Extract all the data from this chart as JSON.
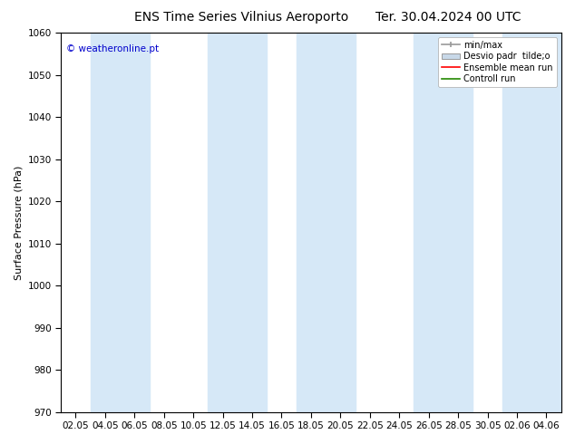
{
  "title_left": "ENS Time Series Vilnius Aeroporto",
  "title_right": "Ter. 30.04.2024 00 UTC",
  "ylabel": "Surface Pressure (hPa)",
  "ylim": [
    970,
    1060
  ],
  "yticks": [
    970,
    980,
    990,
    1000,
    1010,
    1020,
    1030,
    1040,
    1050,
    1060
  ],
  "watermark": "© weatheronline.pt",
  "watermark_color": "#0000cc",
  "bg_color": "#ffffff",
  "band_color": "#d6e8f7",
  "x_labels": [
    "02.05",
    "04.05",
    "06.05",
    "08.05",
    "10.05",
    "12.05",
    "14.05",
    "16.05",
    "18.05",
    "20.05",
    "22.05",
    "24.05",
    "26.05",
    "28.05",
    "30.05",
    "02.06",
    "04.06"
  ],
  "legend_items": [
    {
      "label": "min/max",
      "color": "#aaaaaa",
      "style": "minmax"
    },
    {
      "label": "Desvio padr  tilde;o",
      "color": "#bbccdd",
      "style": "band"
    },
    {
      "label": "Ensemble mean run",
      "color": "#ff0000",
      "style": "line"
    },
    {
      "label": "Controll run",
      "color": "#228800",
      "style": "line"
    }
  ],
  "title_fontsize": 10,
  "axis_fontsize": 8,
  "tick_fontsize": 7.5
}
